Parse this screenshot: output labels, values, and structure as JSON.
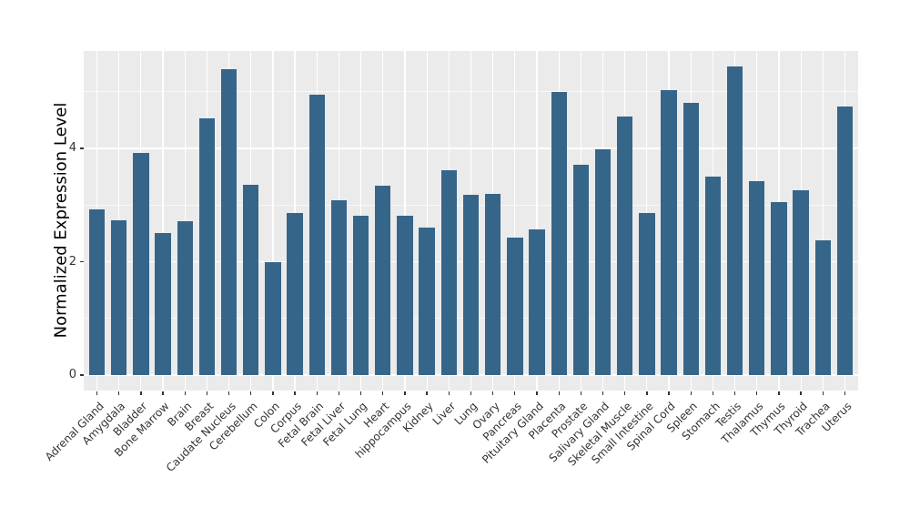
{
  "chart_data": {
    "type": "bar",
    "title": "",
    "xlabel": "",
    "ylabel": "Normalized Expression Level",
    "legend": "none",
    "categories": [
      "Adrenal Gland",
      "Amygdala",
      "Bladder",
      "Bone Marrow",
      "Brain",
      "Breast",
      "Caudate Nucleus",
      "Cerebellum",
      "Colon",
      "Corpus",
      "Fetal Brain",
      "Fetal Liver",
      "Fetal Lung",
      "Heart",
      "hippocampus",
      "Kidney",
      "Liver",
      "Lung",
      "Ovary",
      "Pancreas",
      "Pituitary Gland",
      "Placenta",
      "Prostate",
      "Salivary Gland",
      "Skeletal Muscle",
      "Small Intestine",
      "Spinal Cord",
      "Spleen",
      "Stomach",
      "Testis",
      "Thalamus",
      "Thymus",
      "Thyroid",
      "Trachea",
      "Uterus"
    ],
    "values": [
      2.92,
      2.74,
      3.92,
      2.51,
      2.71,
      4.53,
      5.4,
      3.36,
      2.0,
      2.86,
      4.95,
      3.08,
      2.81,
      3.34,
      2.82,
      2.6,
      3.61,
      3.18,
      3.2,
      2.42,
      2.58,
      4.99,
      3.72,
      3.99,
      4.57,
      2.86,
      5.03,
      4.8,
      3.5,
      5.45,
      3.42,
      3.05,
      3.27,
      2.38,
      4.74
    ],
    "ylim": [
      -0.27,
      5.72
    ],
    "yticks": [
      0,
      2,
      4
    ],
    "yticks_minor": [
      1,
      3,
      5
    ],
    "grid": {
      "horizontal": "major+minor",
      "vertical": "per-category-major"
    },
    "colors": {
      "bar_fill": "#36658A",
      "panel_background": "#EBEBEB",
      "figure_background": "#FFFFFF",
      "gridline": "#FFFFFF",
      "tick_text": "#333333",
      "axis_title_text": "#000000",
      "tick_mark": "#333333"
    }
  }
}
